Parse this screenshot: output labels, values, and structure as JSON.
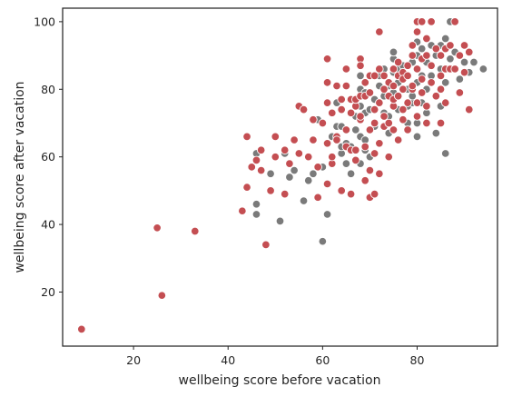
{
  "chart_data": {
    "type": "scatter",
    "title": "",
    "xlabel": "wellbeing score before vacation",
    "ylabel": "wellbeing score after vacation",
    "xlim": [
      5,
      97
    ],
    "ylim": [
      4,
      104
    ],
    "xticks": [
      20,
      40,
      60,
      80
    ],
    "yticks": [
      20,
      40,
      60,
      80,
      100
    ],
    "grid": false,
    "legend": "none",
    "series": [
      {
        "color": "#7a7a7a",
        "points": [
          [
            46,
            43
          ],
          [
            46,
            46
          ],
          [
            46,
            61
          ],
          [
            49,
            55
          ],
          [
            51,
            41
          ],
          [
            52,
            61
          ],
          [
            53,
            54
          ],
          [
            54,
            56
          ],
          [
            56,
            47
          ],
          [
            57,
            53
          ],
          [
            57,
            60
          ],
          [
            58,
            55
          ],
          [
            59,
            71
          ],
          [
            60,
            35
          ],
          [
            60,
            57
          ],
          [
            61,
            43
          ],
          [
            62,
            66
          ],
          [
            62,
            73
          ],
          [
            63,
            69
          ],
          [
            63,
            76
          ],
          [
            64,
            61
          ],
          [
            64,
            63
          ],
          [
            64,
            69
          ],
          [
            65,
            58
          ],
          [
            65,
            64
          ],
          [
            66,
            55
          ],
          [
            66,
            63
          ],
          [
            67,
            68
          ],
          [
            67,
            72
          ],
          [
            67,
            76
          ],
          [
            68,
            58
          ],
          [
            68,
            66
          ],
          [
            68,
            75
          ],
          [
            68,
            80
          ],
          [
            68,
            84
          ],
          [
            69,
            62
          ],
          [
            69,
            65
          ],
          [
            69,
            73
          ],
          [
            69,
            79
          ],
          [
            70,
            74
          ],
          [
            70,
            60
          ],
          [
            71,
            69
          ],
          [
            71,
            77
          ],
          [
            72,
            81
          ],
          [
            72,
            84
          ],
          [
            73,
            73
          ],
          [
            73,
            78
          ],
          [
            73,
            86
          ],
          [
            74,
            67
          ],
          [
            74,
            72
          ],
          [
            74,
            81
          ],
          [
            75,
            85
          ],
          [
            75,
            89
          ],
          [
            75,
            91
          ],
          [
            75,
            79
          ],
          [
            76,
            74
          ],
          [
            76,
            82
          ],
          [
            76,
            86
          ],
          [
            77,
            87
          ],
          [
            78,
            70
          ],
          [
            78,
            75
          ],
          [
            78,
            80
          ],
          [
            78,
            84
          ],
          [
            79,
            76
          ],
          [
            79,
            88
          ],
          [
            79,
            78
          ],
          [
            80,
            82
          ],
          [
            80,
            86
          ],
          [
            80,
            90
          ],
          [
            80,
            94
          ],
          [
            80,
            70
          ],
          [
            80,
            66
          ],
          [
            81,
            76
          ],
          [
            81,
            84
          ],
          [
            81,
            92
          ],
          [
            82,
            80
          ],
          [
            82,
            88
          ],
          [
            82,
            73
          ],
          [
            83,
            84
          ],
          [
            83,
            93
          ],
          [
            84,
            78
          ],
          [
            84,
            90
          ],
          [
            84,
            67
          ],
          [
            85,
            86
          ],
          [
            85,
            75
          ],
          [
            85,
            93
          ],
          [
            86,
            61
          ],
          [
            86,
            95
          ],
          [
            86,
            82
          ],
          [
            87,
            89
          ],
          [
            87,
            100
          ],
          [
            88,
            91
          ],
          [
            88,
            86
          ],
          [
            89,
            83
          ],
          [
            90,
            88
          ],
          [
            91,
            85
          ],
          [
            92,
            88
          ],
          [
            94,
            86
          ]
        ]
      },
      {
        "color": "#c44e52",
        "points": [
          [
            9,
            9
          ],
          [
            25,
            39
          ],
          [
            26,
            19
          ],
          [
            33,
            38
          ],
          [
            43,
            44
          ],
          [
            44,
            51
          ],
          [
            44,
            66
          ],
          [
            45,
            57
          ],
          [
            46,
            59
          ],
          [
            47,
            62
          ],
          [
            47,
            56
          ],
          [
            48,
            34
          ],
          [
            49,
            50
          ],
          [
            50,
            60
          ],
          [
            50,
            66
          ],
          [
            52,
            49
          ],
          [
            52,
            62
          ],
          [
            53,
            58
          ],
          [
            54,
            65
          ],
          [
            55,
            75
          ],
          [
            55,
            61
          ],
          [
            56,
            74
          ],
          [
            57,
            60
          ],
          [
            58,
            65
          ],
          [
            58,
            71
          ],
          [
            59,
            48
          ],
          [
            59,
            57
          ],
          [
            60,
            70
          ],
          [
            61,
            89
          ],
          [
            61,
            76
          ],
          [
            61,
            82
          ],
          [
            61,
            64
          ],
          [
            61,
            52
          ],
          [
            62,
            58
          ],
          [
            62,
            73
          ],
          [
            62,
            60
          ],
          [
            63,
            66
          ],
          [
            63,
            81
          ],
          [
            63,
            65
          ],
          [
            64,
            77
          ],
          [
            64,
            74
          ],
          [
            64,
            50
          ],
          [
            65,
            63
          ],
          [
            65,
            81
          ],
          [
            65,
            86
          ],
          [
            65,
            68
          ],
          [
            66,
            49
          ],
          [
            66,
            62
          ],
          [
            66,
            73
          ],
          [
            66,
            77
          ],
          [
            67,
            62
          ],
          [
            67,
            75
          ],
          [
            67,
            77
          ],
          [
            67,
            59
          ],
          [
            68,
            71
          ],
          [
            68,
            78
          ],
          [
            68,
            89
          ],
          [
            68,
            87
          ],
          [
            68,
            72
          ],
          [
            69,
            53
          ],
          [
            69,
            63
          ],
          [
            69,
            82
          ],
          [
            69,
            78
          ],
          [
            70,
            48
          ],
          [
            70,
            56
          ],
          [
            70,
            68
          ],
          [
            70,
            79
          ],
          [
            70,
            84
          ],
          [
            71,
            49
          ],
          [
            71,
            61
          ],
          [
            71,
            74
          ],
          [
            71,
            84
          ],
          [
            71,
            70
          ],
          [
            72,
            97
          ],
          [
            72,
            86
          ],
          [
            72,
            76
          ],
          [
            72,
            64
          ],
          [
            72,
            55
          ],
          [
            73,
            80
          ],
          [
            73,
            72
          ],
          [
            73,
            69
          ],
          [
            73,
            84
          ],
          [
            74,
            78
          ],
          [
            74,
            82
          ],
          [
            74,
            60
          ],
          [
            74,
            70
          ],
          [
            75,
            68
          ],
          [
            75,
            75
          ],
          [
            75,
            86
          ],
          [
            75,
            81
          ],
          [
            75,
            77
          ],
          [
            76,
            88
          ],
          [
            76,
            84
          ],
          [
            76,
            65
          ],
          [
            76,
            78
          ],
          [
            77,
            71
          ],
          [
            77,
            80
          ],
          [
            77,
            85
          ],
          [
            77,
            74
          ],
          [
            77,
            83
          ],
          [
            78,
            87
          ],
          [
            78,
            68
          ],
          [
            78,
            76
          ],
          [
            78,
            84
          ],
          [
            79,
            80
          ],
          [
            79,
            93
          ],
          [
            79,
            90
          ],
          [
            79,
            81
          ],
          [
            80,
            97
          ],
          [
            80,
            100
          ],
          [
            80,
            72
          ],
          [
            80,
            86
          ],
          [
            80,
            76
          ],
          [
            81,
            89
          ],
          [
            81,
            83
          ],
          [
            81,
            79
          ],
          [
            81,
            100
          ],
          [
            82,
            90
          ],
          [
            82,
            70
          ],
          [
            82,
            95
          ],
          [
            82,
            75
          ],
          [
            83,
            100
          ],
          [
            83,
            87
          ],
          [
            83,
            82
          ],
          [
            84,
            92
          ],
          [
            84,
            78
          ],
          [
            85,
            90
          ],
          [
            85,
            84
          ],
          [
            85,
            80
          ],
          [
            85,
            70
          ],
          [
            86,
            86
          ],
          [
            86,
            92
          ],
          [
            86,
            76
          ],
          [
            87,
            86
          ],
          [
            87,
            93
          ],
          [
            88,
            86
          ],
          [
            88,
            100
          ],
          [
            89,
            79
          ],
          [
            89,
            90
          ],
          [
            90,
            85
          ],
          [
            90,
            93
          ],
          [
            91,
            91
          ],
          [
            91,
            74
          ]
        ]
      }
    ]
  }
}
